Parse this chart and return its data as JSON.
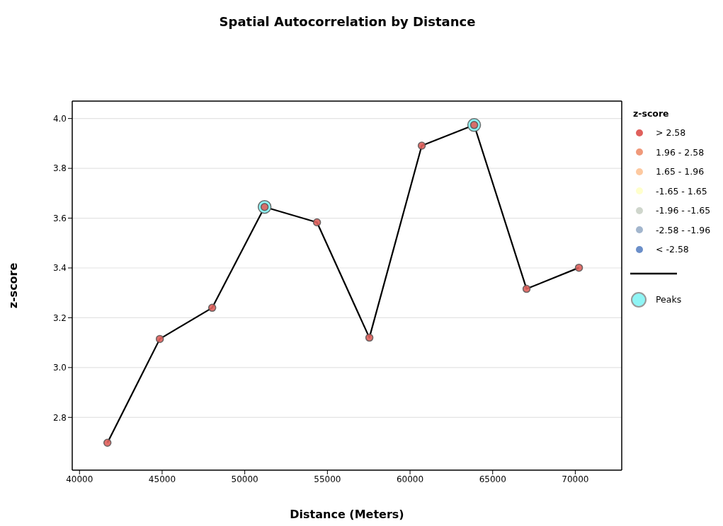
{
  "chart_data": {
    "type": "line",
    "title": "Spatial Autocorrelation by Distance",
    "xlabel": "Distance (Meters)",
    "ylabel": "z-score",
    "legend_title": "z-score",
    "x": [
      41690,
      44860,
      48030,
      51200,
      54370,
      57540,
      60710,
      63880,
      67050,
      70220
    ],
    "series": [
      {
        "type": "scatter",
        "name": "> 2.58",
        "color": "#e0605c",
        "values": [
          2.698,
          3.115,
          3.24,
          3.645,
          3.583,
          3.12,
          3.891,
          3.974,
          3.316,
          3.401
        ]
      },
      {
        "type": "scatter",
        "name": "1.96 - 2.58",
        "color": "#f0997a",
        "values": [
          null,
          null,
          null,
          null,
          null,
          null,
          null,
          null,
          null,
          null
        ]
      },
      {
        "type": "scatter",
        "name": "1.65 - 1.96",
        "color": "#fdc9a0",
        "values": [
          null,
          null,
          null,
          null,
          null,
          null,
          null,
          null,
          null,
          null
        ]
      },
      {
        "type": "scatter",
        "name": "-1.65 - 1.65",
        "color": "#ffffcc",
        "values": [
          null,
          null,
          null,
          null,
          null,
          null,
          null,
          null,
          null,
          null
        ]
      },
      {
        "type": "scatter",
        "name": "-1.96 - -1.65",
        "color": "#cfd6cc",
        "values": [
          null,
          null,
          null,
          null,
          null,
          null,
          null,
          null,
          null,
          null
        ]
      },
      {
        "type": "scatter",
        "name": "-2.58 - -1.96",
        "color": "#a3b6cd",
        "values": [
          null,
          null,
          null,
          null,
          null,
          null,
          null,
          null,
          null,
          null
        ]
      },
      {
        "type": "scatter",
        "name": "< -2.58",
        "color": "#6b8fc9",
        "values": [
          null,
          null,
          null,
          null,
          null,
          null,
          null,
          null,
          null,
          null
        ]
      },
      {
        "marker": "none",
        "color": "#000000",
        "values": [
          2.698,
          3.115,
          3.24,
          3.645,
          3.583,
          3.12,
          3.891,
          3.974,
          3.316,
          3.401
        ]
      },
      {
        "type": "scatter",
        "name": "Peaks",
        "color": "#8ff5f5",
        "values": [
          null,
          null,
          null,
          3.645,
          null,
          null,
          null,
          3.974,
          null,
          null
        ]
      }
    ],
    "xlim": [
      39560,
      72810
    ],
    "xticks": [
      40000,
      45000,
      50000,
      55000,
      60000,
      65000,
      70000
    ],
    "ylim": [
      2.588,
      4.07
    ],
    "yticks": [
      2.8,
      {
        "value": 3,
        "label": "3.0"
      },
      3.2,
      3.4,
      3.6,
      3.8,
      {
        "value": 4,
        "label": "4.0"
      }
    ],
    "grid": "y",
    "legend": "right",
    "marker": "circle",
    "line_style": "solid"
  }
}
